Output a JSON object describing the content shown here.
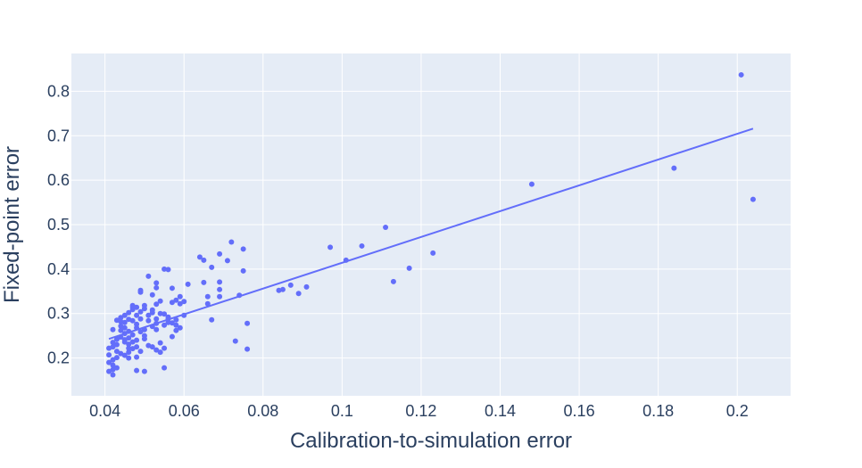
{
  "colors": {
    "plot_background": "#E5ECF6",
    "grid": "#ffffff",
    "text": "#2a3f5f",
    "marker": "#636EFA",
    "trendline": "#636EFA"
  },
  "chart_data": {
    "type": "scatter",
    "title": "",
    "xlabel": "Calibration-to-simulation error",
    "ylabel": "Fixed-point error",
    "xlim": [
      0.0315,
      0.2135
    ],
    "ylim": [
      0.115,
      0.885
    ],
    "x_ticks": [
      0.04,
      0.06,
      0.08,
      0.1,
      0.12,
      0.14,
      0.16,
      0.18,
      0.2
    ],
    "x_tick_labels": [
      "0.04",
      "0.06",
      "0.08",
      "0.1",
      "0.12",
      "0.14",
      "0.16",
      "0.18",
      "0.2"
    ],
    "y_ticks": [
      0.2,
      0.3,
      0.4,
      0.5,
      0.6,
      0.7,
      0.8
    ],
    "y_tick_labels": [
      "0.2",
      "0.3",
      "0.4",
      "0.5",
      "0.6",
      "0.7",
      "0.8"
    ],
    "grid": true,
    "legend": "none",
    "trendline": {
      "x": [
        0.041,
        0.204
      ],
      "y": [
        0.243,
        0.716
      ]
    },
    "series": [
      {
        "points": [
          [
            0.201,
            0.837
          ],
          [
            0.184,
            0.627
          ],
          [
            0.204,
            0.557
          ],
          [
            0.148,
            0.591
          ],
          [
            0.111,
            0.494
          ],
          [
            0.123,
            0.436
          ],
          [
            0.105,
            0.452
          ],
          [
            0.097,
            0.449
          ],
          [
            0.101,
            0.42
          ],
          [
            0.117,
            0.402
          ],
          [
            0.113,
            0.372
          ],
          [
            0.091,
            0.36
          ],
          [
            0.087,
            0.364
          ],
          [
            0.085,
            0.354
          ],
          [
            0.084,
            0.352
          ],
          [
            0.089,
            0.345
          ],
          [
            0.072,
            0.461
          ],
          [
            0.064,
            0.427
          ],
          [
            0.069,
            0.434
          ],
          [
            0.065,
            0.42
          ],
          [
            0.071,
            0.419
          ],
          [
            0.075,
            0.445
          ],
          [
            0.067,
            0.404
          ],
          [
            0.075,
            0.396
          ],
          [
            0.065,
            0.37
          ],
          [
            0.069,
            0.371
          ],
          [
            0.069,
            0.354
          ],
          [
            0.074,
            0.341
          ],
          [
            0.069,
            0.338
          ],
          [
            0.066,
            0.338
          ],
          [
            0.066,
            0.322
          ],
          [
            0.067,
            0.286
          ],
          [
            0.076,
            0.278
          ],
          [
            0.073,
            0.238
          ],
          [
            0.076,
            0.22
          ],
          [
            0.061,
            0.366
          ],
          [
            0.057,
            0.357
          ],
          [
            0.055,
            0.4
          ],
          [
            0.056,
            0.399
          ],
          [
            0.051,
            0.384
          ],
          [
            0.053,
            0.369
          ],
          [
            0.053,
            0.358
          ],
          [
            0.049,
            0.352
          ],
          [
            0.049,
            0.348
          ],
          [
            0.052,
            0.342
          ],
          [
            0.054,
            0.328
          ],
          [
            0.057,
            0.325
          ],
          [
            0.059,
            0.338
          ],
          [
            0.058,
            0.33
          ],
          [
            0.06,
            0.327
          ],
          [
            0.059,
            0.322
          ],
          [
            0.06,
            0.296
          ],
          [
            0.058,
            0.286
          ],
          [
            0.057,
            0.279
          ],
          [
            0.055,
            0.299
          ],
          [
            0.056,
            0.292
          ],
          [
            0.056,
            0.28
          ],
          [
            0.058,
            0.274
          ],
          [
            0.059,
            0.268
          ],
          [
            0.055,
            0.274
          ],
          [
            0.053,
            0.321
          ],
          [
            0.054,
            0.3
          ],
          [
            0.052,
            0.302
          ],
          [
            0.053,
            0.288
          ],
          [
            0.051,
            0.284
          ],
          [
            0.053,
            0.278
          ],
          [
            0.052,
            0.271
          ],
          [
            0.05,
            0.264
          ],
          [
            0.051,
            0.296
          ],
          [
            0.05,
            0.311
          ],
          [
            0.05,
            0.318
          ],
          [
            0.049,
            0.304
          ],
          [
            0.048,
            0.314
          ],
          [
            0.047,
            0.318
          ],
          [
            0.047,
            0.309
          ],
          [
            0.048,
            0.296
          ],
          [
            0.049,
            0.288
          ],
          [
            0.047,
            0.284
          ],
          [
            0.048,
            0.276
          ],
          [
            0.048,
            0.268
          ],
          [
            0.049,
            0.259
          ],
          [
            0.05,
            0.25
          ],
          [
            0.046,
            0.302
          ],
          [
            0.045,
            0.296
          ],
          [
            0.046,
            0.287
          ],
          [
            0.045,
            0.28
          ],
          [
            0.044,
            0.291
          ],
          [
            0.044,
            0.282
          ],
          [
            0.043,
            0.285
          ],
          [
            0.045,
            0.268
          ],
          [
            0.044,
            0.262
          ],
          [
            0.045,
            0.255
          ],
          [
            0.046,
            0.26
          ],
          [
            0.047,
            0.252
          ],
          [
            0.046,
            0.245
          ],
          [
            0.045,
            0.241
          ],
          [
            0.044,
            0.247
          ],
          [
            0.042,
            0.264
          ],
          [
            0.042,
            0.235
          ],
          [
            0.043,
            0.23
          ],
          [
            0.042,
            0.225
          ],
          [
            0.041,
            0.222
          ],
          [
            0.043,
            0.215
          ],
          [
            0.044,
            0.21
          ],
          [
            0.046,
            0.213
          ],
          [
            0.045,
            0.206
          ],
          [
            0.046,
            0.2
          ],
          [
            0.047,
            0.221
          ],
          [
            0.048,
            0.225
          ],
          [
            0.049,
            0.215
          ],
          [
            0.048,
            0.202
          ],
          [
            0.043,
            0.201
          ],
          [
            0.042,
            0.196
          ],
          [
            0.041,
            0.19
          ],
          [
            0.042,
            0.184
          ],
          [
            0.043,
            0.178
          ],
          [
            0.042,
            0.174
          ],
          [
            0.041,
            0.17
          ],
          [
            0.042,
            0.162
          ],
          [
            0.047,
            0.236
          ],
          [
            0.048,
            0.24
          ],
          [
            0.046,
            0.231
          ],
          [
            0.052,
            0.225
          ],
          [
            0.054,
            0.234
          ],
          [
            0.053,
            0.218
          ],
          [
            0.054,
            0.213
          ],
          [
            0.055,
            0.222
          ],
          [
            0.051,
            0.228
          ],
          [
            0.057,
            0.248
          ],
          [
            0.05,
            0.17
          ],
          [
            0.048,
            0.172
          ],
          [
            0.055,
            0.178
          ],
          [
            0.047,
            0.314
          ],
          [
            0.052,
            0.308
          ],
          [
            0.056,
            0.288
          ],
          [
            0.058,
            0.262
          ],
          [
            0.044,
            0.272
          ],
          [
            0.045,
            0.236
          ],
          [
            0.046,
            0.222
          ],
          [
            0.053,
            0.264
          ],
          [
            0.05,
            0.243
          ],
          [
            0.041,
            0.207
          ],
          [
            0.043,
            0.242
          ]
        ]
      }
    ]
  }
}
